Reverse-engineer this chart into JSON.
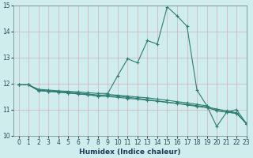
{
  "line1": {
    "x": [
      0,
      1,
      2,
      3,
      4,
      5,
      6,
      7,
      8,
      9,
      10,
      11,
      12,
      13,
      14,
      15,
      16,
      17,
      18,
      19,
      20,
      21,
      22,
      23
    ],
    "y": [
      11.95,
      11.95,
      11.78,
      11.75,
      11.72,
      11.7,
      11.68,
      11.65,
      11.62,
      11.62,
      12.3,
      12.95,
      12.8,
      13.65,
      13.52,
      14.95,
      14.6,
      14.2,
      11.75,
      11.15,
      10.35,
      10.9,
      11.0,
      10.45
    ]
  },
  "line2": {
    "x": [
      0,
      1,
      2,
      3,
      4,
      5,
      6,
      7,
      8,
      9,
      10,
      11,
      12,
      13,
      14,
      15,
      16,
      17,
      18,
      19,
      20,
      21,
      22,
      23
    ],
    "y": [
      11.95,
      11.95,
      11.75,
      11.72,
      11.7,
      11.67,
      11.64,
      11.6,
      11.56,
      11.55,
      11.52,
      11.47,
      11.43,
      11.38,
      11.33,
      11.28,
      11.23,
      11.18,
      11.12,
      11.07,
      10.97,
      10.9,
      10.85,
      10.48
    ]
  },
  "line3": {
    "x": [
      0,
      1,
      2,
      3,
      4,
      5,
      6,
      7,
      8,
      9,
      10,
      11,
      12,
      13,
      14,
      15,
      16,
      17,
      18,
      19,
      20,
      21,
      22,
      23
    ],
    "y": [
      11.95,
      11.95,
      11.73,
      11.7,
      11.67,
      11.64,
      11.6,
      11.57,
      11.52,
      11.5,
      11.47,
      11.43,
      11.4,
      11.36,
      11.32,
      11.28,
      11.24,
      11.2,
      11.15,
      11.1,
      11.02,
      10.95,
      10.88,
      10.45
    ]
  },
  "line4": {
    "x": [
      0,
      1,
      2,
      3,
      4,
      5,
      6,
      7,
      8,
      9,
      10,
      11,
      12,
      13,
      14,
      15,
      16,
      17,
      18,
      19,
      20,
      21,
      22,
      23
    ],
    "y": [
      11.95,
      11.95,
      11.73,
      11.7,
      11.67,
      11.64,
      11.6,
      11.57,
      11.52,
      11.58,
      11.55,
      11.52,
      11.48,
      11.45,
      11.4,
      11.36,
      11.3,
      11.26,
      11.2,
      11.14,
      10.95,
      10.9,
      10.86,
      10.45
    ]
  },
  "line_color": "#2e7d70",
  "background_color": "#d0eded",
  "grid_color": "#d4b0b8",
  "xlabel": "Humidex (Indice chaleur)",
  "ylim": [
    10,
    15
  ],
  "xlim": [
    -0.5,
    23
  ],
  "yticks": [
    10,
    11,
    12,
    13,
    14,
    15
  ],
  "xticks": [
    0,
    1,
    2,
    3,
    4,
    5,
    6,
    7,
    8,
    9,
    10,
    11,
    12,
    13,
    14,
    15,
    16,
    17,
    18,
    19,
    20,
    21,
    22,
    23
  ]
}
